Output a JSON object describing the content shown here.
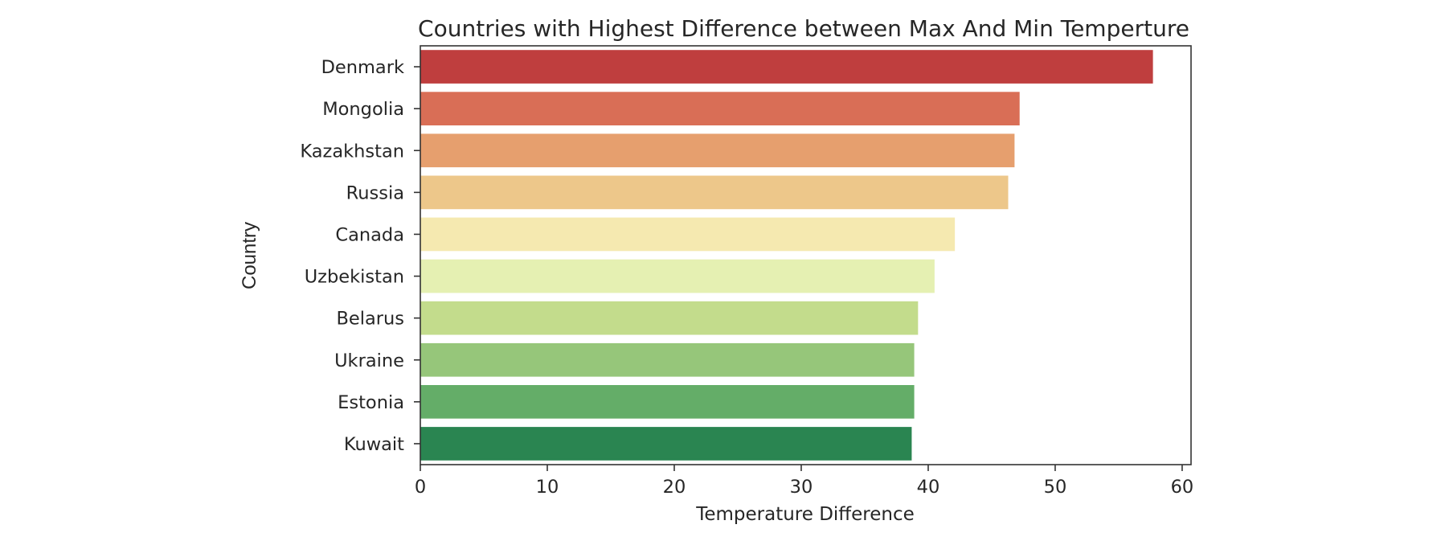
{
  "chart_data": {
    "type": "bar",
    "orientation": "horizontal",
    "title": "Countries with Highest Difference between Max And Min Temperture",
    "xlabel": "Temperature Difference",
    "ylabel": "Country",
    "categories": [
      "Denmark",
      "Mongolia",
      "Kazakhstan",
      "Russia",
      "Canada",
      "Uzbekistan",
      "Belarus",
      "Ukraine",
      "Estonia",
      "Kuwait"
    ],
    "values": [
      57.7,
      47.2,
      46.8,
      46.3,
      42.1,
      40.5,
      39.2,
      38.9,
      38.9,
      38.7
    ],
    "colors": [
      "#bf3e3e",
      "#d96e56",
      "#e69f6e",
      "#edc78a",
      "#f5e9b0",
      "#e5f0b2",
      "#c3dc8c",
      "#96c67a",
      "#64ad68",
      "#2a8551"
    ],
    "xlim": [
      0,
      60.7
    ],
    "xticks": [
      "0",
      "10",
      "20",
      "30",
      "40",
      "50",
      "60"
    ],
    "grid": false
  }
}
